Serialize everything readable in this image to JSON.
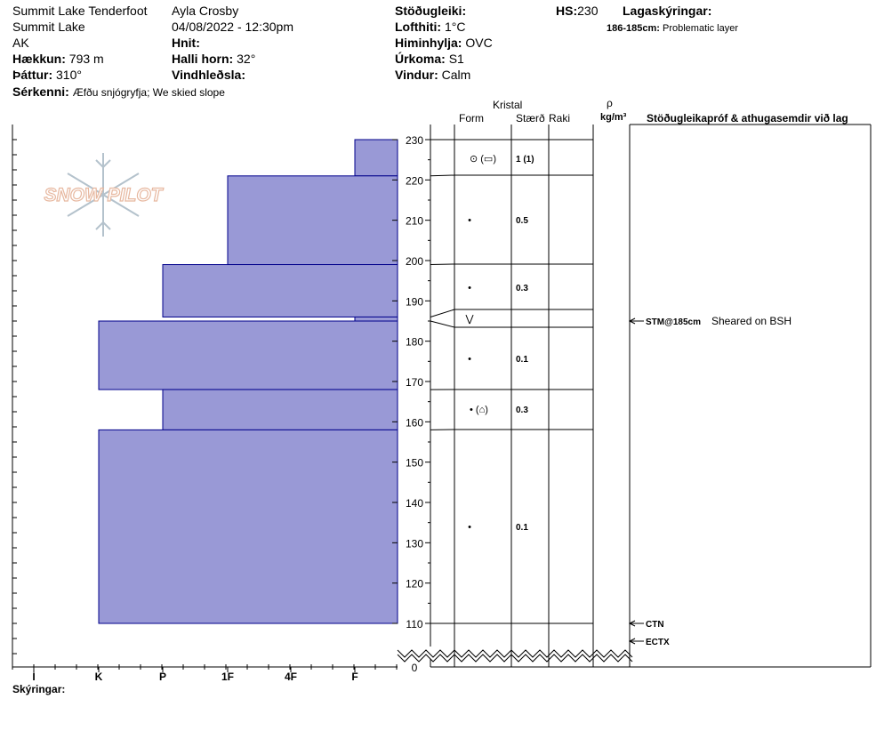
{
  "header": {
    "location": "Summit Lake Tenderfoot",
    "area": "Summit Lake",
    "state": "AK",
    "elevation_label": "Hækkun:",
    "elevation_value": "793 m",
    "aspect_label": "Þáttur:",
    "aspect_value": "310°",
    "observer": "Ayla Crosby",
    "datetime": "04/08/2022 - 12:30pm",
    "coords_label": "Hnit:",
    "slope_label": "Halli horn:",
    "slope_value": "32°",
    "wind_loading_label": "Vindhleðsla:",
    "stability_label": "Stöðugleiki:",
    "air_temp_label": "Lofthiti:",
    "air_temp_value": "1°C",
    "sky_label": "Himinhylja:",
    "sky_value": "OVC",
    "precip_label": "Úrkoma:",
    "precip_value": "S1",
    "wind_label": "Vindur:",
    "wind_value": "Calm",
    "hs_label": "HS:",
    "hs_value": "230",
    "layer_notes_label": "Lagaskýringar:",
    "problem_layer_label": "186-185cm:",
    "problem_layer_value": "Problematic layer",
    "features_label": "Sérkenni:",
    "features_value": "Æfðu snjógryfja;  We skied slope"
  },
  "logo_text": "SNOW PILOT",
  "columns": {
    "crystal": "Kristal",
    "form": "Form",
    "size": "Stærð",
    "moisture": "Raki",
    "density_symbol": "ρ",
    "density_unit": "kg/m³",
    "tests": "Stöðugleikapróf & athugasemdir við lag"
  },
  "footer_label": "Skýringar:",
  "hardness_ticks": [
    "I",
    "K",
    "P",
    "1F",
    "4F",
    "F"
  ],
  "depth_ticks": [
    "0",
    "110",
    "120",
    "130",
    "140",
    "150",
    "160",
    "170",
    "180",
    "190",
    "200",
    "210",
    "220",
    "230"
  ],
  "layer_details": [
    {
      "form": "⊙ (▭)",
      "size": "1 (1)"
    },
    {
      "form": "•",
      "size": "0.5"
    },
    {
      "form": "•",
      "size": "0.3"
    },
    {
      "form": "⋁",
      "size": ""
    },
    {
      "form": "•",
      "size": "0.1"
    },
    {
      "form": "• (⌂)",
      "size": "0.3"
    },
    {
      "form": "•",
      "size": "0.1"
    }
  ],
  "tests": [
    {
      "label": "STM@185cm",
      "note": "Sheared on BSH"
    },
    {
      "label": "CTN",
      "note": ""
    },
    {
      "label": "ECTX",
      "note": ""
    }
  ],
  "chart_data": {
    "type": "bar",
    "orientation": "horizontal",
    "y_axis_label": "",
    "ylim": [
      110,
      230
    ],
    "hardness_scale": [
      "I",
      "K",
      "P",
      "1F",
      "4F",
      "F"
    ],
    "bar_color": "#9999d6",
    "layers": [
      {
        "top": 230,
        "bottom": 221,
        "hardness": "F"
      },
      {
        "top": 221,
        "bottom": 199,
        "hardness": "1F"
      },
      {
        "top": 199,
        "bottom": 186,
        "hardness": "P"
      },
      {
        "top": 186,
        "bottom": 185,
        "hardness": "F"
      },
      {
        "top": 185,
        "bottom": 168,
        "hardness": "K"
      },
      {
        "top": 168,
        "bottom": 158,
        "hardness": "P"
      },
      {
        "top": 158,
        "bottom": 110,
        "hardness": "K"
      }
    ]
  }
}
